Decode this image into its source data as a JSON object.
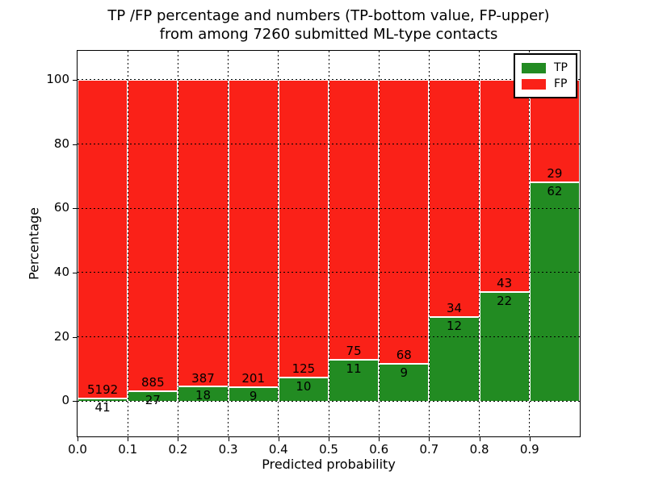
{
  "figure": {
    "title_line1": "TP /FP percentage and numbers (TP-bottom value, FP-upper)",
    "title_line2": "from among 7260 submitted ML-type contacts",
    "xlabel": "Predicted probability",
    "ylabel": "Percentage",
    "background_color": "#ffffff"
  },
  "chart_data": {
    "type": "bar",
    "stacked": true,
    "normalized": "each bar totals 100%",
    "title": "TP /FP percentage and numbers (TP-bottom value, FP-upper) from among 7260 submitted ML-type contacts",
    "xlabel": "Predicted probability",
    "ylabel": "Percentage",
    "total_contacts": 7260,
    "x_bins": [
      "0.0-0.1",
      "0.1-0.2",
      "0.2-0.3",
      "0.3-0.4",
      "0.4-0.5",
      "0.5-0.6",
      "0.6-0.7",
      "0.7-0.8",
      "0.8-0.9",
      "0.9-1.0"
    ],
    "xticks": [
      "0.0",
      "0.1",
      "0.2",
      "0.3",
      "0.4",
      "0.5",
      "0.6",
      "0.7",
      "0.8",
      "0.9"
    ],
    "yticks": [
      0,
      20,
      40,
      60,
      80,
      100
    ],
    "xlim": [
      0.0,
      1.0
    ],
    "ylim": [
      -11,
      109
    ],
    "grid": {
      "on": true,
      "style": "dotted",
      "color": "#000000"
    },
    "bar_edge_color": "#ffffff",
    "legend": {
      "position": "upper right",
      "entries": [
        {
          "label": "TP",
          "color": "#228b22"
        },
        {
          "label": "FP",
          "color": "#fa2118"
        }
      ]
    },
    "series": [
      {
        "name": "TP",
        "color": "#228b22",
        "counts": [
          41,
          27,
          18,
          9,
          10,
          11,
          9,
          12,
          22,
          62
        ],
        "pct": [
          0.78,
          2.96,
          4.44,
          4.29,
          7.41,
          12.79,
          11.69,
          26.09,
          33.85,
          68.13
        ]
      },
      {
        "name": "FP",
        "color": "#fa2118",
        "counts": [
          5192,
          885,
          387,
          201,
          125,
          75,
          68,
          34,
          43,
          29
        ],
        "pct": [
          99.22,
          97.04,
          95.56,
          95.71,
          92.59,
          87.21,
          88.31,
          73.91,
          66.15,
          31.87
        ]
      }
    ]
  }
}
